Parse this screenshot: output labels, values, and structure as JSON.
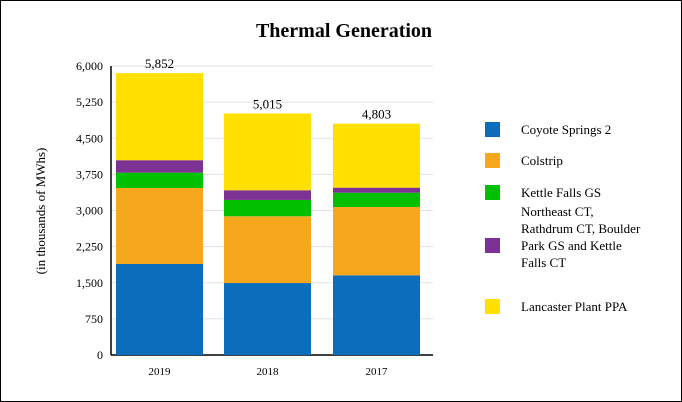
{
  "chart_data": {
    "type": "bar",
    "stacked": true,
    "title": "Thermal Generation",
    "xlabel": "",
    "ylabel": "(in thousands of MWhs)",
    "ylim": [
      0,
      6000
    ],
    "yticks": [
      "0",
      "750",
      "1,500",
      "2,250",
      "3,000",
      "3,750",
      "4,500",
      "5,250",
      "6,000"
    ],
    "ytick_values": [
      0,
      750,
      1500,
      2250,
      3000,
      3750,
      4500,
      5250,
      6000
    ],
    "grid": true,
    "legend_position": "right",
    "categories": [
      "2019",
      "2018",
      "2017"
    ],
    "totals": [
      "5,852",
      "5,015",
      "4,803"
    ],
    "series": [
      {
        "name": "Coyote Springs 2",
        "color": "#0a6ebd",
        "values": [
          1889,
          1494,
          1654
        ]
      },
      {
        "name": "Colstrip",
        "color": "#f7a71c",
        "values": [
          1579,
          1386,
          1419
        ]
      },
      {
        "name": "Kettle Falls GS",
        "color": "#00c000",
        "values": [
          318,
          339,
          297
        ]
      },
      {
        "name": "Northeast CT, Rathdrum CT, Boulder Park GS and Kettle Falls CT",
        "color": "#7b3294",
        "values": [
          258,
          201,
          104
        ]
      },
      {
        "name": "Lancaster Plant PPA",
        "color": "#ffe000",
        "values": [
          1808,
          1595,
          1329
        ]
      }
    ]
  }
}
